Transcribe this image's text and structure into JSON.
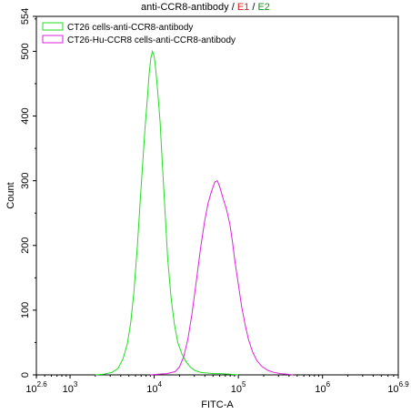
{
  "title": {
    "main": "anti-CCR8-antibody",
    "sep1": " / ",
    "e1": "E1",
    "sep2": " / ",
    "e2": "E2",
    "e1_color": "#d42020",
    "e2_color": "#1a8a1a"
  },
  "chart_data": {
    "type": "line",
    "title": "anti-CCR8-antibody / E1 / E2",
    "xlabel": "FITC-A",
    "ylabel": "Count",
    "x_scale": "log",
    "xlim": [
      2.6,
      6.9
    ],
    "ylim": [
      0,
      554
    ],
    "x_ticks": [
      {
        "exp": 2.6,
        "base": "10",
        "sup": "2.6"
      },
      {
        "exp": 3,
        "base": "10",
        "sup": "3"
      },
      {
        "exp": 4,
        "base": "10",
        "sup": "4"
      },
      {
        "exp": 5,
        "base": "10",
        "sup": "5"
      },
      {
        "exp": 6,
        "base": "10",
        "sup": "6"
      },
      {
        "exp": 6.9,
        "base": "10",
        "sup": "6.9"
      }
    ],
    "y_ticks": [
      0,
      100,
      200,
      300,
      400,
      500,
      554
    ],
    "grid": false,
    "legend_position": "top-left",
    "series": [
      {
        "name": "CT26 cells-anti-CCR8-antibody",
        "color": "#22dd22",
        "points": [
          [
            3.3,
            0
          ],
          [
            3.4,
            1
          ],
          [
            3.5,
            4
          ],
          [
            3.57,
            10
          ],
          [
            3.63,
            25
          ],
          [
            3.68,
            48
          ],
          [
            3.72,
            80
          ],
          [
            3.76,
            130
          ],
          [
            3.8,
            200
          ],
          [
            3.83,
            260
          ],
          [
            3.86,
            320
          ],
          [
            3.89,
            380
          ],
          [
            3.92,
            430
          ],
          [
            3.94,
            465
          ],
          [
            3.96,
            490
          ],
          [
            3.98,
            500
          ],
          [
            4.0,
            492
          ],
          [
            4.02,
            470
          ],
          [
            4.04,
            440
          ],
          [
            4.07,
            390
          ],
          [
            4.1,
            320
          ],
          [
            4.13,
            250
          ],
          [
            4.16,
            180
          ],
          [
            4.2,
            120
          ],
          [
            4.24,
            78
          ],
          [
            4.28,
            50
          ],
          [
            4.33,
            32
          ],
          [
            4.38,
            20
          ],
          [
            4.43,
            12
          ],
          [
            4.48,
            7
          ],
          [
            4.55,
            4
          ],
          [
            4.62,
            3
          ],
          [
            4.7,
            2
          ],
          [
            4.8,
            2
          ],
          [
            4.9,
            1
          ],
          [
            5.0,
            0
          ]
        ]
      },
      {
        "name": "CT26-Hu-CCR8 cells-anti-CCR8-antibody",
        "color": "#dd22dd",
        "points": [
          [
            3.95,
            0
          ],
          [
            4.05,
            1
          ],
          [
            4.15,
            2
          ],
          [
            4.25,
            5
          ],
          [
            4.3,
            12
          ],
          [
            4.35,
            28
          ],
          [
            4.4,
            55
          ],
          [
            4.45,
            95
          ],
          [
            4.5,
            145
          ],
          [
            4.55,
            195
          ],
          [
            4.6,
            238
          ],
          [
            4.64,
            265
          ],
          [
            4.68,
            283
          ],
          [
            4.72,
            298
          ],
          [
            4.75,
            300
          ],
          [
            4.78,
            290
          ],
          [
            4.82,
            272
          ],
          [
            4.86,
            255
          ],
          [
            4.9,
            232
          ],
          [
            4.93,
            205
          ],
          [
            4.96,
            175
          ],
          [
            5.0,
            140
          ],
          [
            5.04,
            105
          ],
          [
            5.08,
            78
          ],
          [
            5.12,
            55
          ],
          [
            5.17,
            35
          ],
          [
            5.22,
            22
          ],
          [
            5.28,
            13
          ],
          [
            5.35,
            7
          ],
          [
            5.42,
            4
          ],
          [
            5.5,
            2
          ],
          [
            5.58,
            1
          ],
          [
            5.65,
            0
          ]
        ]
      }
    ]
  }
}
